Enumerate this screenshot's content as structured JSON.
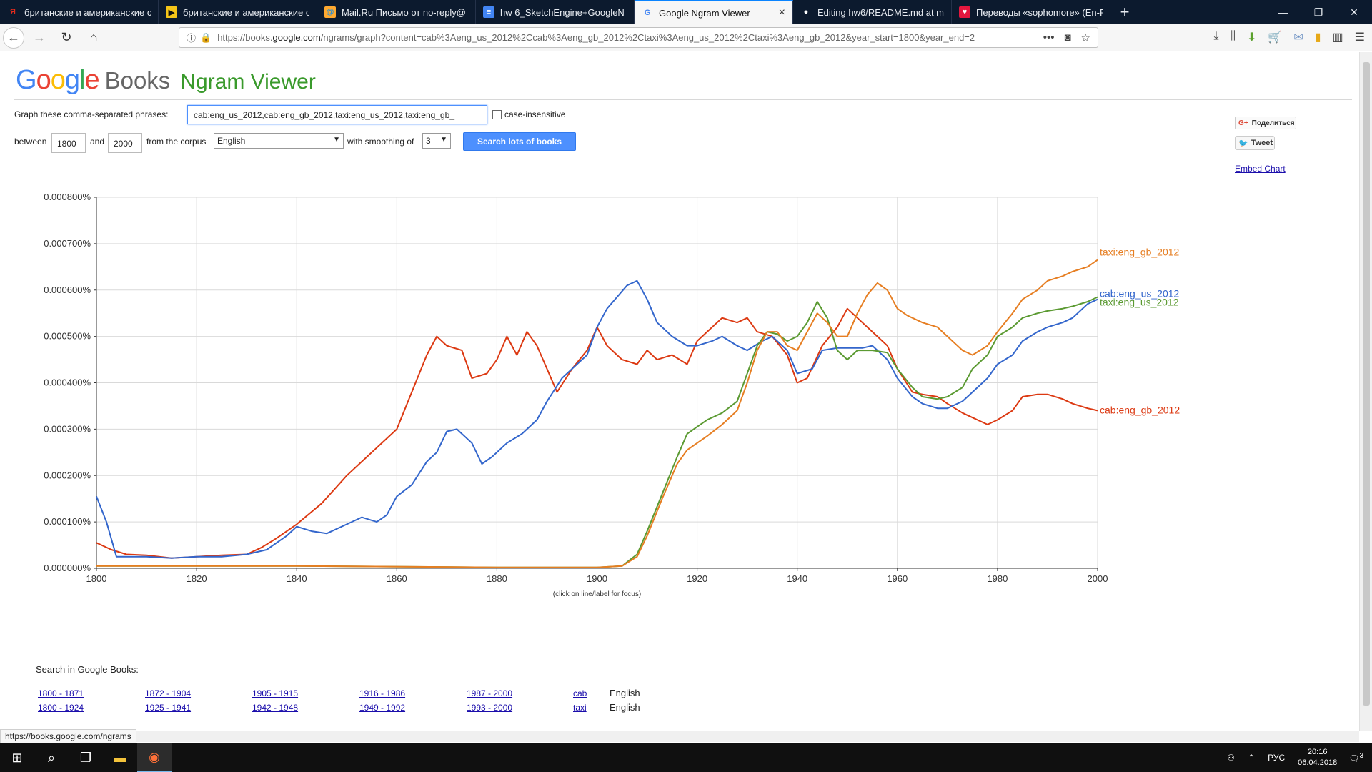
{
  "browser": {
    "tabs": [
      {
        "title": "британские и американские с",
        "fav": "Я",
        "fav_color": "#e32b1c",
        "fav_bg": "transparent"
      },
      {
        "title": "британские и американские с",
        "fav": "▶",
        "fav_color": "#111",
        "fav_bg": "#f5c518"
      },
      {
        "title": "Mail.Ru Письмо от no-reply@",
        "fav": "@",
        "fav_color": "#168de2",
        "fav_bg": "#ffa930"
      },
      {
        "title": "hw 6_SketchEngine+GoogleN",
        "fav": "≡",
        "fav_color": "#fff",
        "fav_bg": "#4285f4"
      },
      {
        "title": "Google Ngram Viewer",
        "fav": "G",
        "fav_color": "#4285f4",
        "fav_bg": "transparent"
      },
      {
        "title": "Editing hw6/README.md at m",
        "fav": "●",
        "fav_color": "#fff",
        "fav_bg": "transparent"
      },
      {
        "title": "Переводы «sophomore» (En-R",
        "fav": "♥",
        "fav_color": "#fff",
        "fav_bg": "#e4173e"
      }
    ],
    "new_tab": "+",
    "url_prefix": "https://books.",
    "url_domain": "google.com",
    "url_rest": "/ngrams/graph?content=cab%3Aeng_us_2012%2Ccab%3Aeng_gb_2012%2Ctaxi%3Aeng_us_2012%2Ctaxi%3Aeng_gb_2012&year_start=1800&year_end=2",
    "status_url": "https://books.google.com/ngrams"
  },
  "header": {
    "logo_google": "Google",
    "logo_books": "Books",
    "logo_ngram": "Ngram Viewer"
  },
  "form": {
    "phrases_label": "Graph these comma-separated phrases:",
    "phrases_value": "cab:eng_us_2012,cab:eng_gb_2012,taxi:eng_us_2012,taxi:eng_gb_",
    "case_insensitive_label": "case-insensitive",
    "between_label": "between",
    "year_start": "1800",
    "and_label": "and",
    "year_end": "2000",
    "corpus_label": "from the corpus",
    "corpus_value": "English",
    "smoothing_label": "with smoothing of",
    "smoothing_value": "3",
    "search_button": "Search lots of books"
  },
  "social": {
    "share_label": "Поделиться",
    "tweet_label": "Tweet",
    "embed_label": "Embed Chart"
  },
  "chart_data": {
    "type": "line",
    "title": "",
    "xlabel": "",
    "ylabel": "",
    "xlim": [
      1800,
      2000
    ],
    "ylim": [
      0,
      8e-06
    ],
    "x_ticks": [
      1800,
      1820,
      1840,
      1860,
      1880,
      1900,
      1920,
      1940,
      1960,
      1980,
      2000
    ],
    "y_ticks": [
      "0.000000%",
      "0.000100%",
      "0.000200%",
      "0.000300%",
      "0.000400%",
      "0.000500%",
      "0.000600%",
      "0.000700%",
      "0.000800%"
    ],
    "note": "(click on line/label for focus)",
    "grid": true,
    "legend": "right (line end labels)",
    "series": [
      {
        "name": "cab:eng_gb_2012",
        "color": "#dc3912",
        "x": [
          1800,
          1803,
          1806,
          1810,
          1815,
          1820,
          1825,
          1830,
          1833,
          1836,
          1840,
          1845,
          1850,
          1855,
          1858,
          1860,
          1863,
          1866,
          1868,
          1870,
          1873,
          1875,
          1878,
          1880,
          1882,
          1884,
          1886,
          1888,
          1890,
          1892,
          1895,
          1898,
          1900,
          1902,
          1905,
          1908,
          1910,
          1912,
          1915,
          1918,
          1920,
          1922,
          1925,
          1928,
          1930,
          1932,
          1935,
          1938,
          1940,
          1942,
          1945,
          1948,
          1950,
          1953,
          1955,
          1958,
          1960,
          1963,
          1965,
          1968,
          1970,
          1973,
          1975,
          1978,
          1980,
          1983,
          1985,
          1988,
          1990,
          1993,
          1995,
          1998,
          2000
        ],
        "y": [
          5.5e-07,
          4e-07,
          3e-07,
          2.8e-07,
          2.2e-07,
          2.5e-07,
          2.8e-07,
          3e-07,
          4.5e-07,
          6.5e-07,
          9.5e-07,
          1.4e-06,
          2e-06,
          2.5e-06,
          2.8e-06,
          3e-06,
          3.8e-06,
          4.6e-06,
          5e-06,
          4.8e-06,
          4.7e-06,
          4.1e-06,
          4.2e-06,
          4.5e-06,
          5e-06,
          4.6e-06,
          5.1e-06,
          4.8e-06,
          4.3e-06,
          3.8e-06,
          4.3e-06,
          4.7e-06,
          5.2e-06,
          4.8e-06,
          4.5e-06,
          4.4e-06,
          4.7e-06,
          4.5e-06,
          4.6e-06,
          4.4e-06,
          4.9e-06,
          5.1e-06,
          5.4e-06,
          5.3e-06,
          5.4e-06,
          5.1e-06,
          5e-06,
          4.6e-06,
          4e-06,
          4.1e-06,
          4.8e-06,
          5.2e-06,
          5.6e-06,
          5.3e-06,
          5.1e-06,
          4.8e-06,
          4.3e-06,
          3.8e-06,
          3.75e-06,
          3.7e-06,
          3.55e-06,
          3.35e-06,
          3.25e-06,
          3.1e-06,
          3.2e-06,
          3.4e-06,
          3.7e-06,
          3.75e-06,
          3.75e-06,
          3.65e-06,
          3.55e-06,
          3.45e-06,
          3.4e-06
        ]
      },
      {
        "name": "cab:eng_us_2012",
        "color": "#3366cc",
        "x": [
          1800,
          1802,
          1804,
          1806,
          1810,
          1815,
          1820,
          1825,
          1830,
          1834,
          1838,
          1840,
          1843,
          1846,
          1850,
          1853,
          1856,
          1858,
          1860,
          1863,
          1866,
          1868,
          1870,
          1872,
          1875,
          1877,
          1879,
          1882,
          1885,
          1888,
          1890,
          1893,
          1896,
          1898,
          1900,
          1902,
          1904,
          1906,
          1908,
          1910,
          1912,
          1915,
          1918,
          1920,
          1923,
          1925,
          1928,
          1930,
          1933,
          1935,
          1938,
          1940,
          1943,
          1945,
          1948,
          1950,
          1953,
          1955,
          1958,
          1960,
          1963,
          1965,
          1968,
          1970,
          1973,
          1975,
          1978,
          1980,
          1983,
          1985,
          1988,
          1990,
          1993,
          1995,
          1998,
          2000
        ],
        "y": [
          1.55e-06,
          1e-06,
          2.5e-07,
          2.5e-07,
          2.5e-07,
          2.2e-07,
          2.5e-07,
          2.5e-07,
          3e-07,
          4e-07,
          7e-07,
          9e-07,
          8e-07,
          7.5e-07,
          9.5e-07,
          1.1e-06,
          1e-06,
          1.15e-06,
          1.55e-06,
          1.8e-06,
          2.3e-06,
          2.5e-06,
          2.95e-06,
          3e-06,
          2.7e-06,
          2.25e-06,
          2.4e-06,
          2.7e-06,
          2.9e-06,
          3.2e-06,
          3.6e-06,
          4.1e-06,
          4.4e-06,
          4.6e-06,
          5.2e-06,
          5.6e-06,
          5.85e-06,
          6.1e-06,
          6.2e-06,
          5.8e-06,
          5.3e-06,
          5e-06,
          4.8e-06,
          4.8e-06,
          4.9e-06,
          5e-06,
          4.8e-06,
          4.7e-06,
          4.9e-06,
          5e-06,
          4.7e-06,
          4.2e-06,
          4.3e-06,
          4.7e-06,
          4.75e-06,
          4.75e-06,
          4.75e-06,
          4.8e-06,
          4.5e-06,
          4.1e-06,
          3.7e-06,
          3.55e-06,
          3.45e-06,
          3.45e-06,
          3.6e-06,
          3.8e-06,
          4.1e-06,
          4.4e-06,
          4.6e-06,
          4.9e-06,
          5.1e-06,
          5.2e-06,
          5.3e-06,
          5.4e-06,
          5.7e-06,
          5.8e-06
        ]
      },
      {
        "name": "taxi:eng_us_2012",
        "color": "#5b9a32",
        "x": [
          1800,
          1840,
          1880,
          1900,
          1905,
          1908,
          1910,
          1913,
          1916,
          1918,
          1920,
          1922,
          1925,
          1928,
          1930,
          1932,
          1934,
          1936,
          1938,
          1940,
          1942,
          1944,
          1946,
          1948,
          1950,
          1952,
          1955,
          1958,
          1960,
          1963,
          1965,
          1968,
          1970,
          1973,
          1975,
          1978,
          1980,
          1983,
          1985,
          1988,
          1990,
          1993,
          1995,
          1998,
          2000
        ],
        "y": [
          5e-08,
          5e-08,
          2e-08,
          2e-08,
          5e-08,
          3e-07,
          8e-07,
          1.6e-06,
          2.4e-06,
          2.9e-06,
          3.05e-06,
          3.2e-06,
          3.35e-06,
          3.6e-06,
          4.2e-06,
          4.8e-06,
          5.1e-06,
          5.05e-06,
          4.9e-06,
          5e-06,
          5.3e-06,
          5.75e-06,
          5.4e-06,
          4.7e-06,
          4.5e-06,
          4.7e-06,
          4.7e-06,
          4.65e-06,
          4.3e-06,
          3.9e-06,
          3.7e-06,
          3.65e-06,
          3.7e-06,
          3.9e-06,
          4.3e-06,
          4.6e-06,
          5e-06,
          5.2e-06,
          5.4e-06,
          5.5e-06,
          5.55e-06,
          5.6e-06,
          5.65e-06,
          5.75e-06,
          5.85e-06
        ]
      },
      {
        "name": "taxi:eng_gb_2012",
        "color": "#e67e22",
        "x": [
          1800,
          1840,
          1880,
          1900,
          1905,
          1908,
          1910,
          1913,
          1916,
          1918,
          1920,
          1922,
          1925,
          1928,
          1930,
          1932,
          1934,
          1936,
          1938,
          1940,
          1942,
          1944,
          1946,
          1948,
          1950,
          1952,
          1954,
          1956,
          1958,
          1960,
          1962,
          1965,
          1968,
          1970,
          1973,
          1975,
          1978,
          1980,
          1983,
          1985,
          1988,
          1990,
          1993,
          1995,
          1998,
          2000
        ],
        "y": [
          5e-08,
          5e-08,
          2e-08,
          2e-08,
          5e-08,
          2.5e-07,
          7e-07,
          1.5e-06,
          2.25e-06,
          2.55e-06,
          2.7e-06,
          2.85e-06,
          3.1e-06,
          3.4e-06,
          4e-06,
          4.7e-06,
          5.1e-06,
          5.1e-06,
          4.8e-06,
          4.7e-06,
          5.1e-06,
          5.5e-06,
          5.3e-06,
          5e-06,
          5e-06,
          5.5e-06,
          5.9e-06,
          6.15e-06,
          6e-06,
          5.6e-06,
          5.45e-06,
          5.3e-06,
          5.2e-06,
          5e-06,
          4.7e-06,
          4.6e-06,
          4.8e-06,
          5.1e-06,
          5.5e-06,
          5.8e-06,
          6e-06,
          6.2e-06,
          6.3e-06,
          6.4e-06,
          6.5e-06,
          6.65e-06
        ]
      }
    ]
  },
  "search_in_books": {
    "title": "Search in Google Books:",
    "rows": [
      {
        "ranges": [
          "1800 - 1871",
          "1872 - 1904",
          "1905 - 1915",
          "1916 - 1986",
          "1987 - 2000"
        ],
        "word": "cab",
        "corpus": "English"
      },
      {
        "ranges": [
          "1800 - 1924",
          "1925 - 1941",
          "1942 - 1948",
          "1949 - 1992",
          "1993 - 2000"
        ],
        "word": "taxi",
        "corpus": "English"
      }
    ]
  },
  "taskbar": {
    "lang": "РУС",
    "time": "20:16",
    "date": "06.04.2018",
    "notif": "3"
  }
}
